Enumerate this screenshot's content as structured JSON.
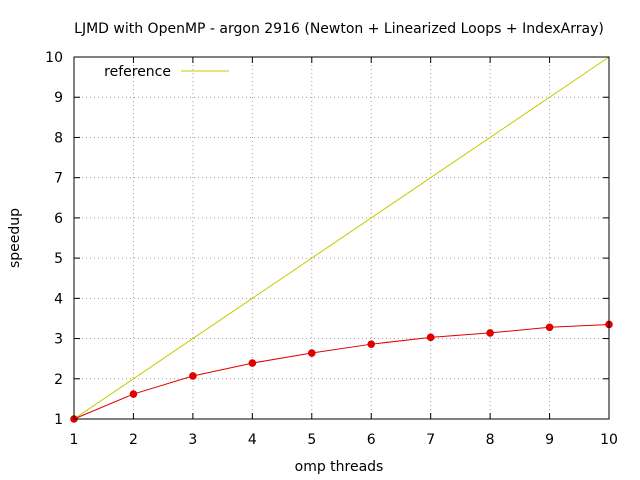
{
  "chart_data": {
    "type": "line",
    "title": "LJMD with OpenMP - argon 2916 (Newton + Linearized Loops + IndexArray)",
    "xlabel": "omp threads",
    "ylabel": "speedup",
    "xlim": [
      1,
      10
    ],
    "ylim": [
      1,
      10
    ],
    "xticks": [
      1,
      2,
      3,
      4,
      5,
      6,
      7,
      8,
      9,
      10
    ],
    "yticks": [
      1,
      2,
      3,
      4,
      5,
      6,
      7,
      8,
      9,
      10
    ],
    "grid": true,
    "legend_position": "top-left",
    "series": [
      {
        "name": "reference",
        "color": "#c8c800",
        "marker": "none",
        "x": [
          1,
          10
        ],
        "y": [
          1,
          10
        ]
      },
      {
        "color": "#e00000",
        "marker": "circle",
        "x": [
          1,
          2,
          3,
          4,
          5,
          6,
          7,
          8,
          9,
          10
        ],
        "y": [
          1.0,
          1.62,
          2.07,
          2.39,
          2.64,
          2.86,
          3.03,
          3.14,
          3.28,
          3.35
        ]
      }
    ]
  }
}
